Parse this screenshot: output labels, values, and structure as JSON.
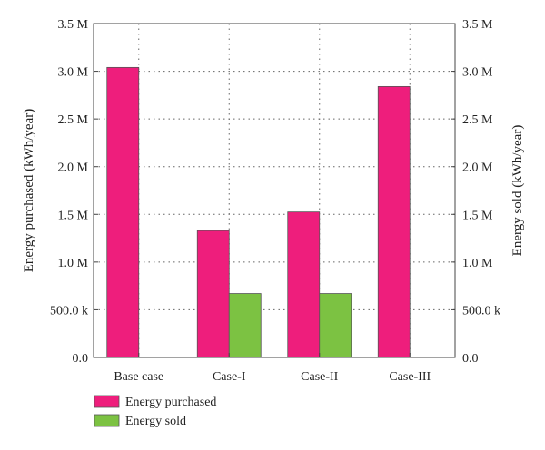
{
  "chart_data": {
    "type": "bar",
    "categories": [
      "Base case",
      "Case-I",
      "Case-II",
      "Case-III"
    ],
    "series": [
      {
        "name": "Energy purchased",
        "values": [
          3040000,
          1330000,
          1525000,
          2840000
        ]
      },
      {
        "name": "Energy sold",
        "values": [
          0,
          670000,
          670000,
          0
        ]
      }
    ],
    "ylabel_left": "Energy purchased (kWh/year)",
    "ylabel_right": "Energy sold (kWh/year)",
    "ylim": [
      0,
      3500000
    ],
    "yticks": [
      {
        "value": 0,
        "label": "0.0"
      },
      {
        "value": 500000,
        "label": "500.0 k"
      },
      {
        "value": 1000000,
        "label": "1.0 M"
      },
      {
        "value": 1500000,
        "label": "1.5 M"
      },
      {
        "value": 2000000,
        "label": "2.0 M"
      },
      {
        "value": 2500000,
        "label": "2.5 M"
      },
      {
        "value": 3000000,
        "label": "3.0 M"
      },
      {
        "value": 3500000,
        "label": "3.5 M"
      }
    ],
    "grid": "dotted",
    "legend_position": "bottom-left",
    "colors": {
      "Energy purchased": "#ee1e7c",
      "Energy sold": "#7cc242"
    }
  }
}
